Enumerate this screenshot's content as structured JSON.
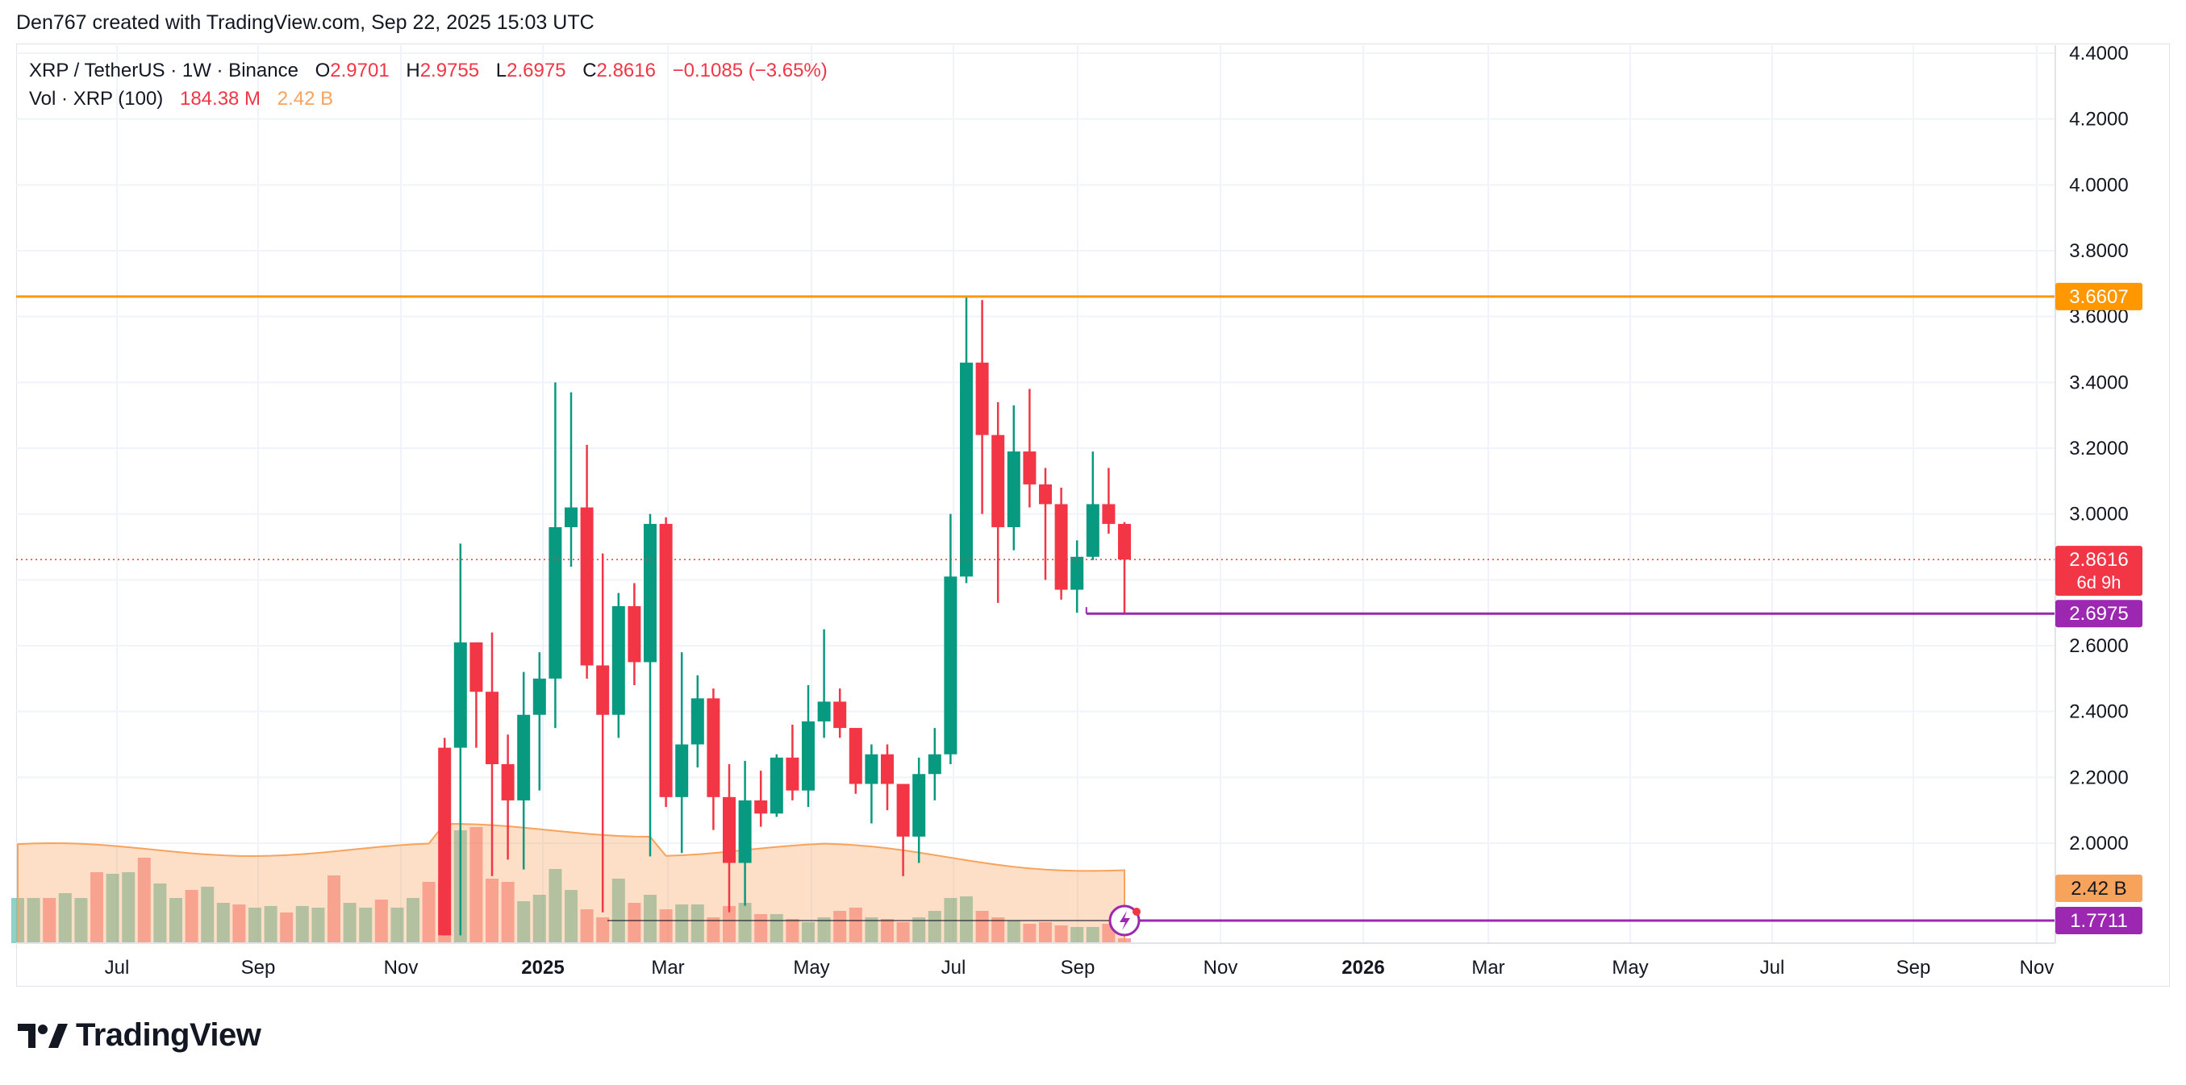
{
  "header": {
    "credit": "Den767 created with TradingView.com, Sep 22, 2025 15:03 UTC"
  },
  "legend": {
    "symbol": "XRP / TetherUS · 1W · Binance",
    "o_label": "O",
    "o_value": "2.9701",
    "h_label": "H",
    "h_value": "2.9755",
    "l_label": "L",
    "l_value": "2.6975",
    "c_label": "C",
    "c_value": "2.8616",
    "change": "−0.1085 (−3.65%)",
    "vol_label": "Vol · XRP (100)",
    "vol_value": "184.38 M",
    "vol_ma": "2.42 B"
  },
  "brand": {
    "name": "TradingView"
  },
  "colors": {
    "up": "#089981",
    "down": "#f23645",
    "resistance": "#ff9800",
    "support": "#9c27b0",
    "vol_ma": "#f7a35c"
  },
  "chart_data": {
    "type": "candlestick",
    "timeframe": "1W",
    "ylim": [
      1.72,
      4.42
    ],
    "y_ticks": [
      "4.4000",
      "4.2000",
      "4.0000",
      "3.8000",
      "3.6000",
      "3.4000",
      "3.2000",
      "3.0000",
      "2.8000",
      "2.6000",
      "2.4000",
      "2.2000",
      "2.0000"
    ],
    "x_ticks": [
      "Jul",
      "Sep",
      "Nov",
      "2025",
      "Mar",
      "May",
      "Jul",
      "Sep",
      "Nov",
      "2026",
      "Mar",
      "May",
      "Jul",
      "Sep",
      "Nov"
    ],
    "x_ticks_bold": [
      "2025",
      "2026"
    ],
    "price_labels": [
      {
        "text": "3.6607",
        "value": 3.6607,
        "color": "#ff9800",
        "kind": "resistance"
      },
      {
        "text": "2.8616",
        "sub": "6d 9h",
        "value": 2.8616,
        "color": "#f23645",
        "kind": "last"
      },
      {
        "text": "2.6975",
        "value": 2.6975,
        "color": "#9c27b0",
        "kind": "support"
      },
      {
        "text": "2.42 B",
        "color": "#f7a35c",
        "kind": "vol_ma"
      },
      {
        "text": "1.7711",
        "value": 1.7711,
        "color": "#9c27b0",
        "kind": "alert"
      }
    ],
    "candles": [
      {
        "o": 2.29,
        "h": 2.32,
        "l": 1.72,
        "c": 1.72
      },
      {
        "o": 2.29,
        "h": 2.91,
        "l": 1.72,
        "c": 2.61
      },
      {
        "o": 2.61,
        "h": 2.61,
        "l": 2.29,
        "c": 2.46
      },
      {
        "o": 2.46,
        "h": 2.64,
        "l": 1.9,
        "c": 2.24
      },
      {
        "o": 2.24,
        "h": 2.33,
        "l": 1.95,
        "c": 2.13
      },
      {
        "o": 2.13,
        "h": 2.52,
        "l": 1.92,
        "c": 2.39
      },
      {
        "o": 2.39,
        "h": 2.58,
        "l": 2.16,
        "c": 2.5
      },
      {
        "o": 2.5,
        "h": 3.4,
        "l": 2.35,
        "c": 2.96
      },
      {
        "o": 2.96,
        "h": 3.37,
        "l": 2.84,
        "c": 3.02
      },
      {
        "o": 3.02,
        "h": 3.21,
        "l": 2.5,
        "c": 2.54
      },
      {
        "o": 2.54,
        "h": 2.88,
        "l": 1.79,
        "c": 2.39
      },
      {
        "o": 2.39,
        "h": 2.76,
        "l": 2.32,
        "c": 2.72
      },
      {
        "o": 2.72,
        "h": 2.79,
        "l": 2.48,
        "c": 2.55
      },
      {
        "o": 2.55,
        "h": 3.0,
        "l": 1.96,
        "c": 2.97
      },
      {
        "o": 2.97,
        "h": 2.99,
        "l": 2.11,
        "c": 2.14
      },
      {
        "o": 2.14,
        "h": 2.58,
        "l": 1.97,
        "c": 2.3
      },
      {
        "o": 2.3,
        "h": 2.51,
        "l": 2.23,
        "c": 2.44
      },
      {
        "o": 2.44,
        "h": 2.47,
        "l": 2.04,
        "c": 2.14
      },
      {
        "o": 2.14,
        "h": 2.24,
        "l": 1.79,
        "c": 1.94
      },
      {
        "o": 1.94,
        "h": 2.25,
        "l": 1.81,
        "c": 2.13
      },
      {
        "o": 2.13,
        "h": 2.22,
        "l": 2.05,
        "c": 2.09
      },
      {
        "o": 2.09,
        "h": 2.27,
        "l": 2.08,
        "c": 2.26
      },
      {
        "o": 2.26,
        "h": 2.36,
        "l": 2.13,
        "c": 2.16
      },
      {
        "o": 2.16,
        "h": 2.48,
        "l": 2.11,
        "c": 2.37
      },
      {
        "o": 2.37,
        "h": 2.65,
        "l": 2.32,
        "c": 2.43
      },
      {
        "o": 2.43,
        "h": 2.47,
        "l": 2.32,
        "c": 2.35
      },
      {
        "o": 2.35,
        "h": 2.35,
        "l": 2.15,
        "c": 2.18
      },
      {
        "o": 2.18,
        "h": 2.3,
        "l": 2.06,
        "c": 2.27
      },
      {
        "o": 2.27,
        "h": 2.3,
        "l": 2.1,
        "c": 2.18
      },
      {
        "o": 2.18,
        "h": 2.18,
        "l": 1.9,
        "c": 2.02
      },
      {
        "o": 2.02,
        "h": 2.26,
        "l": 1.94,
        "c": 2.21
      },
      {
        "o": 2.21,
        "h": 2.35,
        "l": 2.13,
        "c": 2.27
      },
      {
        "o": 2.27,
        "h": 3.0,
        "l": 2.24,
        "c": 2.81
      },
      {
        "o": 2.81,
        "h": 3.66,
        "l": 2.79,
        "c": 3.46
      },
      {
        "o": 3.46,
        "h": 3.65,
        "l": 3.0,
        "c": 3.24
      },
      {
        "o": 3.24,
        "h": 3.34,
        "l": 2.73,
        "c": 2.96
      },
      {
        "o": 2.96,
        "h": 3.33,
        "l": 2.89,
        "c": 3.19
      },
      {
        "o": 3.19,
        "h": 3.38,
        "l": 3.02,
        "c": 3.09
      },
      {
        "o": 3.09,
        "h": 3.14,
        "l": 2.8,
        "c": 3.03
      },
      {
        "o": 3.03,
        "h": 3.08,
        "l": 2.74,
        "c": 2.77
      },
      {
        "o": 2.77,
        "h": 2.92,
        "l": 2.7,
        "c": 2.87
      },
      {
        "o": 2.87,
        "h": 3.19,
        "l": 2.86,
        "c": 3.03
      },
      {
        "o": 3.03,
        "h": 3.14,
        "l": 2.94,
        "c": 2.97
      },
      {
        "o": 2.97,
        "h": 2.9755,
        "l": 2.6975,
        "c": 2.8616
      }
    ],
    "volume_pct": [
      40,
      70,
      72,
      40,
      38,
      26,
      30,
      46,
      33,
      21,
      16,
      40,
      25,
      30,
      21,
      24,
      24,
      16,
      23,
      25,
      18,
      18,
      15,
      13,
      16,
      20,
      22,
      16,
      15,
      13,
      16,
      20,
      28,
      29,
      20,
      16,
      14,
      12,
      13,
      11,
      10,
      10,
      12,
      3
    ],
    "volume_pct_prefix": [
      31,
      32,
      31,
      35,
      28,
      28,
      28,
      31,
      28,
      44,
      43,
      44,
      53,
      37,
      28,
      33,
      35,
      25,
      24,
      22,
      23,
      19,
      23,
      22,
      42,
      25,
      22,
      27,
      22,
      28,
      38
    ],
    "levels": [
      {
        "name": "resistance",
        "value": 3.6607
      },
      {
        "name": "support",
        "value": 2.6975
      },
      {
        "name": "alert",
        "value": 1.7711
      }
    ]
  }
}
